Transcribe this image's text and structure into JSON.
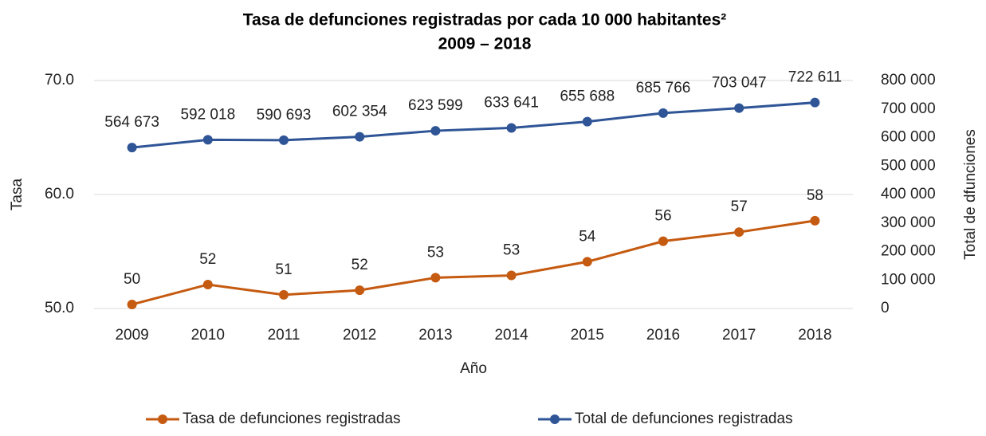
{
  "chart_data": {
    "type": "line",
    "title": "Tasa de defunciones registradas por cada 10 000 habitantes²",
    "subtitle": "2009 – 2018",
    "x_label": "Año",
    "y_label": "Tasa",
    "y2_label": "Total de dfunciones",
    "categories": [
      "2009",
      "2010",
      "2011",
      "2012",
      "2013",
      "2014",
      "2015",
      "2016",
      "2017",
      "2018"
    ],
    "series": [
      {
        "name": "Tasa de defunciones registradas",
        "color": "#c55a11",
        "values": [
          50.35,
          52.1,
          51.2,
          51.6,
          52.7,
          52.9,
          54.1,
          55.9,
          56.7,
          57.7
        ],
        "value_labels": [
          "50",
          "52",
          "51",
          "52",
          "53",
          "53",
          "54",
          "56",
          "57",
          "58"
        ]
      },
      {
        "name": "Total de defunciones registradas",
        "color": "#2f5597",
        "axis": "y2",
        "values": [
          564673,
          592018,
          590693,
          602354,
          623599,
          633641,
          655688,
          685766,
          703047,
          722611
        ],
        "value_labels": [
          "564 673",
          "592 018",
          "590 693",
          "602 354",
          "623 599",
          "633 641",
          "655 688",
          "685 766",
          "703 047",
          "722 611"
        ]
      }
    ],
    "ylim": [
      50,
      70
    ],
    "yticks": [
      {
        "value": 50,
        "label": "50.0"
      },
      {
        "value": 60,
        "label": "60.0"
      },
      {
        "value": 70,
        "label": "70.0"
      }
    ],
    "y2lim": [
      0,
      800000
    ],
    "y2ticks": [
      0,
      {
        "value": 100000,
        "label": "100 000"
      },
      {
        "value": 200000,
        "label": "200 000"
      },
      {
        "value": 300000,
        "label": "300 000"
      },
      {
        "value": 400000,
        "label": "400 000"
      },
      {
        "value": 500000,
        "label": "500 000"
      },
      {
        "value": 600000,
        "label": "600 000"
      },
      {
        "value": 700000,
        "label": "700 000"
      },
      {
        "value": 800000,
        "label": "800 000"
      }
    ],
    "grid": true,
    "legend": "bottom"
  }
}
